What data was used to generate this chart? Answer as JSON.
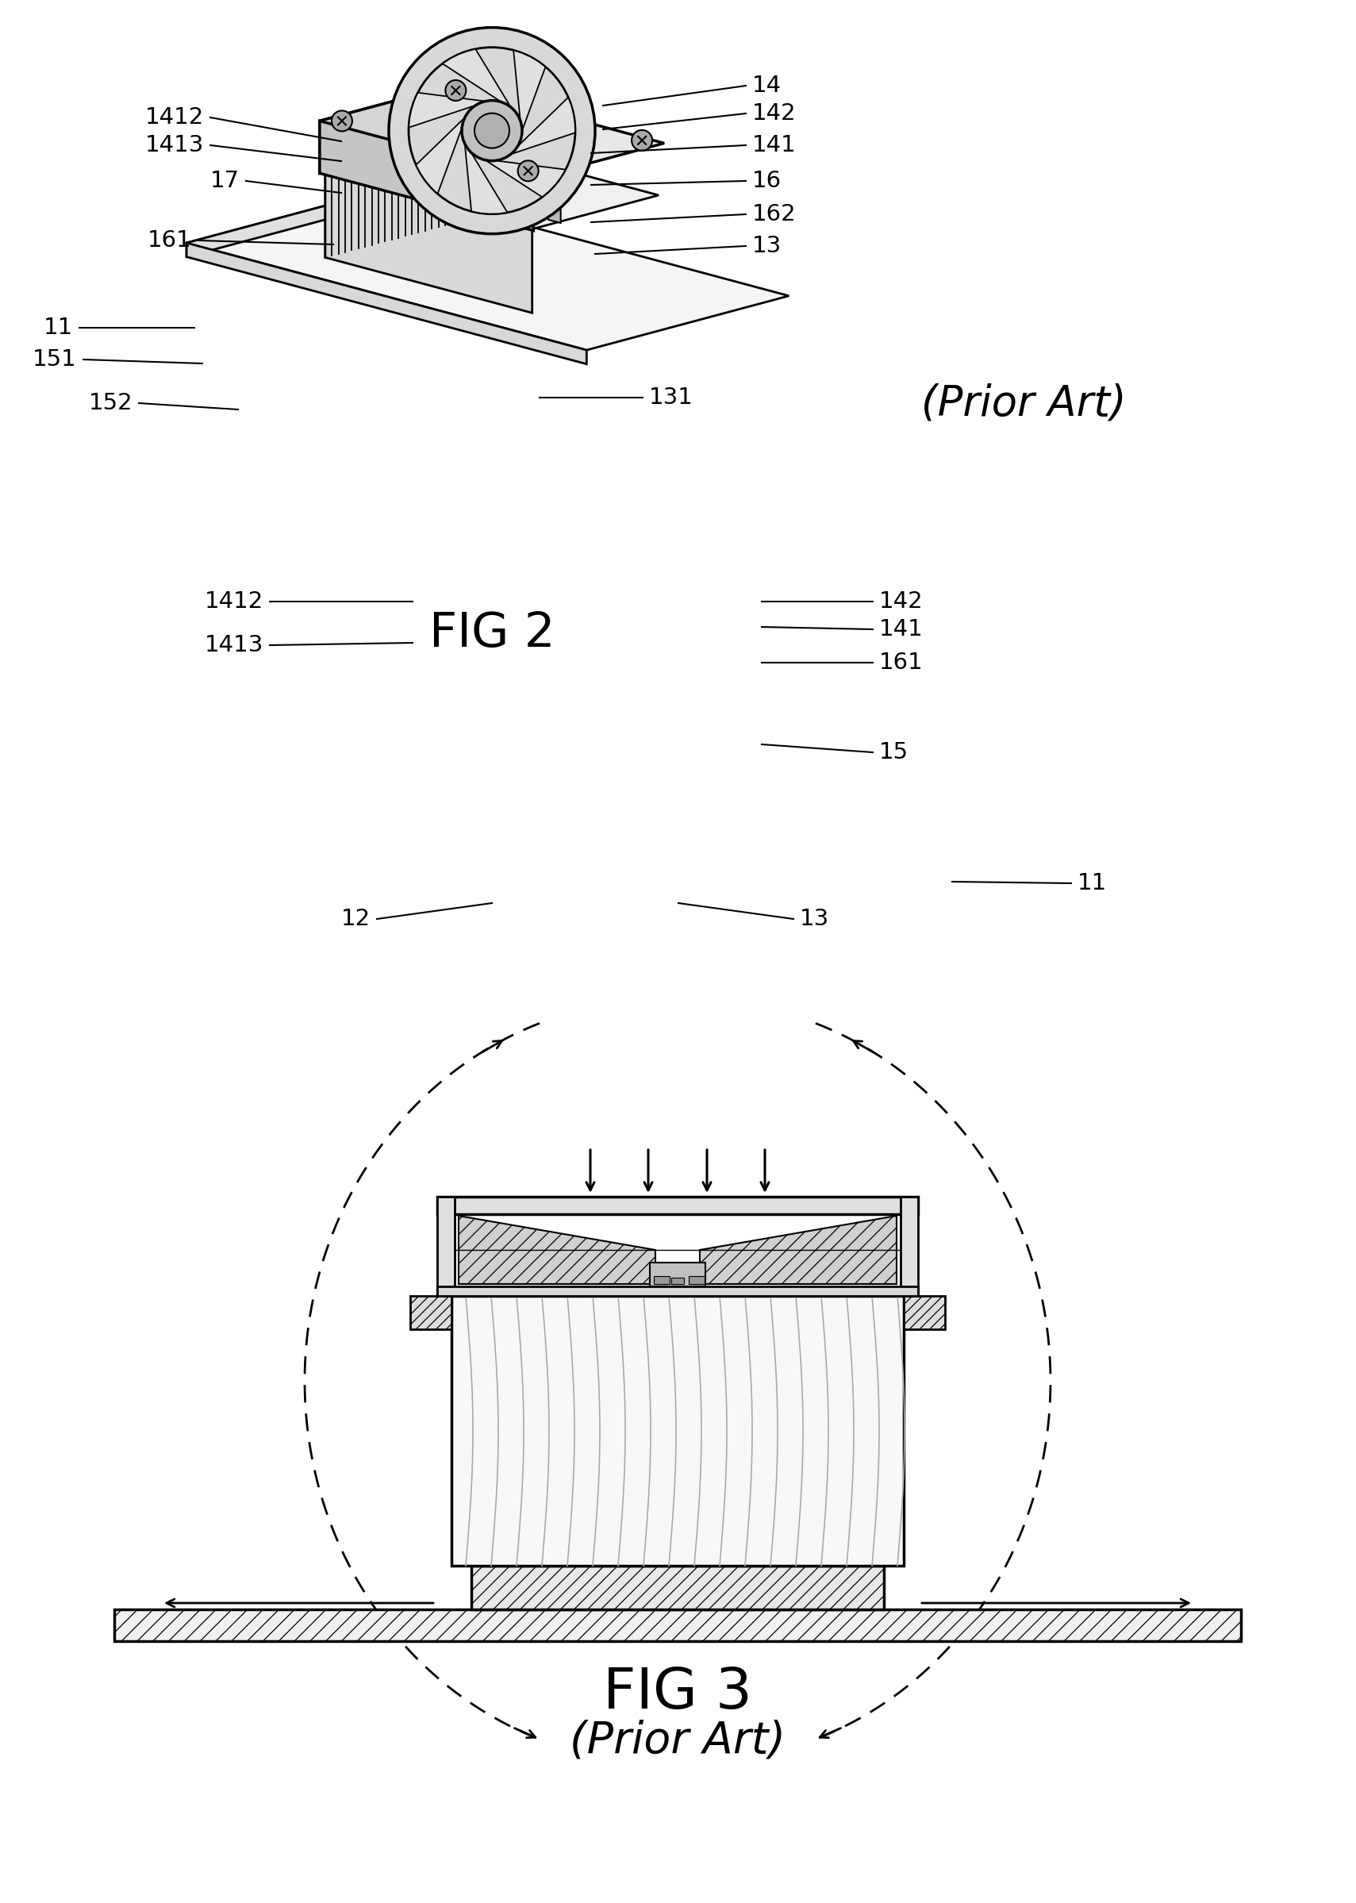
{
  "bg_color": "#ffffff",
  "fig2_title": "FIG 2",
  "fig3_title": "FIG 3",
  "prior_art_fig2": "(Prior Art)",
  "prior_art_fig3": "(Prior Art)",
  "fig2_labels": [
    [
      "1412",
      265,
      2250,
      430,
      2220
    ],
    [
      "1413",
      265,
      2215,
      430,
      2195
    ],
    [
      "17",
      310,
      2170,
      430,
      2155
    ],
    [
      "14",
      940,
      2290,
      760,
      2265
    ],
    [
      "142",
      940,
      2255,
      760,
      2235
    ],
    [
      "141",
      940,
      2215,
      745,
      2205
    ],
    [
      "16",
      940,
      2170,
      745,
      2165
    ],
    [
      "162",
      940,
      2128,
      745,
      2118
    ],
    [
      "13",
      940,
      2088,
      750,
      2078
    ],
    [
      "161",
      250,
      2095,
      420,
      2090
    ],
    [
      "11",
      100,
      1985,
      245,
      1985
    ],
    [
      "151",
      105,
      1945,
      255,
      1940
    ],
    [
      "152",
      175,
      1890,
      300,
      1882
    ],
    [
      "131",
      810,
      1897,
      680,
      1897
    ]
  ],
  "fig3_labels": [
    [
      "1412",
      "left",
      340,
      1640,
      520,
      1640
    ],
    [
      "1413",
      "left",
      340,
      1585,
      520,
      1588
    ],
    [
      "142",
      "right",
      1100,
      1640,
      960,
      1640
    ],
    [
      "141",
      "right",
      1100,
      1605,
      960,
      1608
    ],
    [
      "161",
      "right",
      1100,
      1563,
      960,
      1563
    ],
    [
      "15",
      "right",
      1100,
      1450,
      960,
      1460
    ],
    [
      "12",
      "left",
      475,
      1240,
      620,
      1260
    ],
    [
      "13",
      "right",
      1000,
      1240,
      855,
      1260
    ],
    [
      "11",
      "right",
      1350,
      1285,
      1200,
      1287
    ]
  ]
}
